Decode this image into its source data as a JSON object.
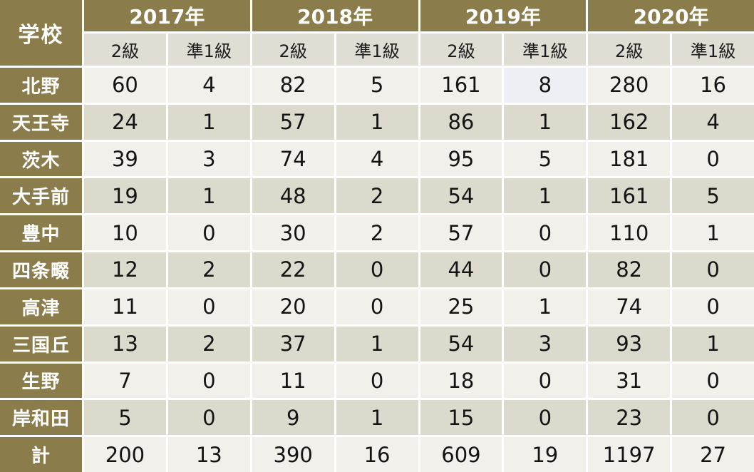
{
  "chart_data": {
    "type": "table",
    "title": "",
    "corner_label": "学校",
    "column_groups": [
      "2017年",
      "2018年",
      "2019年",
      "2020年"
    ],
    "sub_columns": [
      "2級",
      "準1級"
    ],
    "sub_headers": [
      "2級",
      "準1級",
      "2級",
      "準1級",
      "2級",
      "準1級",
      "2級",
      "準1級"
    ],
    "rows": [
      {
        "label": "北野",
        "values": [
          60,
          4,
          82,
          5,
          161,
          8,
          280,
          16
        ],
        "highlight_col": 5
      },
      {
        "label": "天王寺",
        "values": [
          24,
          1,
          57,
          1,
          86,
          1,
          162,
          4
        ]
      },
      {
        "label": "茨木",
        "values": [
          39,
          3,
          74,
          4,
          95,
          5,
          181,
          0
        ]
      },
      {
        "label": "大手前",
        "values": [
          19,
          1,
          48,
          2,
          54,
          1,
          161,
          5
        ]
      },
      {
        "label": "豊中",
        "values": [
          10,
          0,
          30,
          2,
          57,
          0,
          110,
          1
        ]
      },
      {
        "label": "四条畷",
        "values": [
          12,
          2,
          22,
          0,
          44,
          0,
          82,
          0
        ]
      },
      {
        "label": "高津",
        "values": [
          11,
          0,
          20,
          0,
          25,
          1,
          74,
          0
        ]
      },
      {
        "label": "三国丘",
        "values": [
          13,
          2,
          37,
          1,
          54,
          3,
          93,
          1
        ]
      },
      {
        "label": "生野",
        "values": [
          7,
          0,
          11,
          0,
          18,
          0,
          31,
          0
        ]
      },
      {
        "label": "岸和田",
        "values": [
          5,
          0,
          9,
          1,
          15,
          0,
          23,
          0
        ]
      },
      {
        "label": "計",
        "values": [
          200,
          13,
          390,
          16,
          609,
          19,
          1197,
          27
        ],
        "is_total": true
      }
    ]
  },
  "colors": {
    "header_bg": "#8a7c4b",
    "subheader_bg": "#e0ddd4",
    "row_light": "#f2f0eb",
    "row_dark": "#dcd9cd",
    "highlight_cell": "#edeff4",
    "gridline": "#ffffff",
    "header_text": "#ffffff",
    "body_text": "#141414"
  }
}
